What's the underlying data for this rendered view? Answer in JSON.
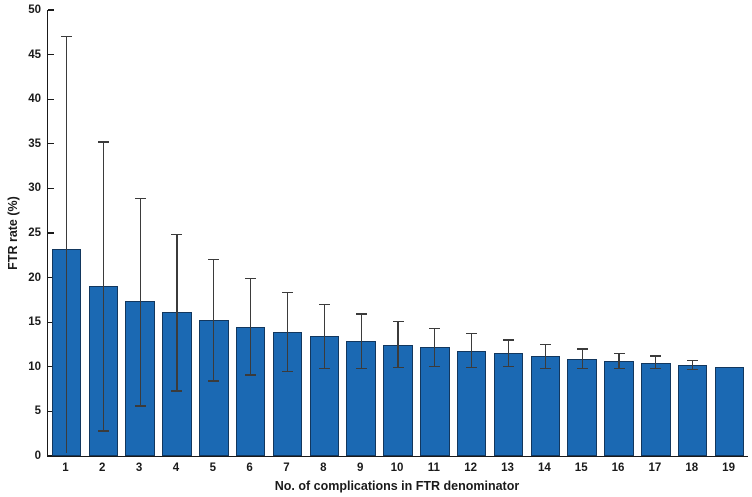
{
  "figure": {
    "background_color": "#ffffff"
  },
  "chart_data": {
    "type": "bar",
    "title": "",
    "xlabel": "No. of complications in FTR denominator",
    "ylabel": "FTR rate (%)",
    "categories": [
      "1",
      "2",
      "3",
      "4",
      "5",
      "6",
      "7",
      "8",
      "9",
      "10",
      "11",
      "12",
      "13",
      "14",
      "15",
      "16",
      "17",
      "18",
      "19"
    ],
    "series": [
      {
        "name": "FTR rate",
        "values": [
          23.2,
          19.1,
          17.4,
          16.2,
          15.2,
          14.5,
          13.9,
          13.4,
          12.9,
          12.5,
          12.2,
          11.8,
          11.5,
          11.2,
          10.9,
          10.7,
          10.4,
          10.2,
          10.0
        ],
        "ci_low": [
          0.3,
          2.8,
          5.6,
          7.3,
          8.4,
          9.1,
          9.5,
          9.8,
          9.8,
          9.9,
          10.0,
          9.9,
          10.0,
          9.8,
          9.8,
          9.8,
          9.8,
          9.7,
          null
        ],
        "ci_high": [
          47.0,
          35.2,
          28.9,
          24.8,
          22.0,
          19.9,
          18.3,
          17.0,
          15.9,
          15.1,
          14.3,
          13.7,
          13.0,
          12.5,
          12.0,
          11.5,
          11.2,
          10.7,
          null
        ]
      }
    ],
    "ylim": [
      0,
      50
    ],
    "yticks": [
      0,
      5,
      10,
      15,
      20,
      25,
      30,
      35,
      40,
      45,
      50
    ],
    "xlim": [
      0.5,
      19.5
    ],
    "grid": false,
    "legend": "none",
    "error_bars": "asymmetric 95% CI, no error bar on category 19",
    "colors": {
      "bar_face": "#1B69B3",
      "bar_edge": "#12375E",
      "error_bar": "#3B3B3B",
      "axis": "#1A1A1A",
      "text": "#1A1A1A"
    }
  }
}
